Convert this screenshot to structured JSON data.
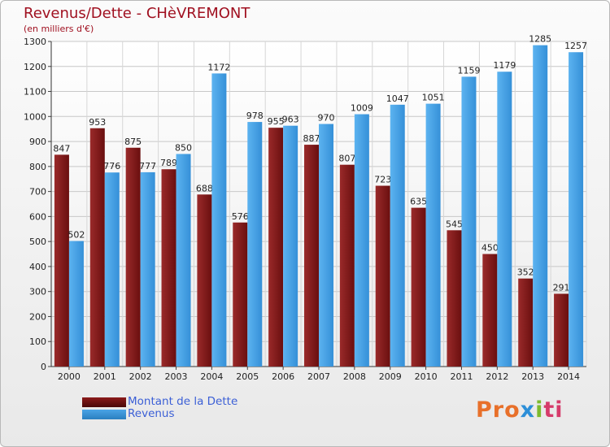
{
  "header": {
    "title": "Revenus/Dette - CHèVREMONT",
    "subtitle": "(en milliers d'€)"
  },
  "chart_data": {
    "type": "bar",
    "categories": [
      "2000",
      "2001",
      "2002",
      "2003",
      "2004",
      "2005",
      "2006",
      "2007",
      "2008",
      "2009",
      "2010",
      "2011",
      "2012",
      "2013",
      "2014"
    ],
    "series": [
      {
        "name": "Montant de la Dette",
        "color": "#8b1a1a",
        "values": [
          847,
          953,
          875,
          789,
          688,
          576,
          955,
          887,
          807,
          723,
          635,
          545,
          450,
          352,
          291
        ],
        "labels": [
          "847",
          "953",
          "875",
          "789",
          "688",
          "576",
          "955",
          "887",
          "807",
          "723",
          "635",
          "545",
          "450",
          "352",
          "291"
        ]
      },
      {
        "name": "Revenus",
        "color": "#4aa3e6",
        "values": [
          502,
          776,
          777,
          850,
          1172,
          978,
          963,
          970,
          1009,
          1047,
          1051,
          1159,
          1179,
          1285,
          1257
        ],
        "labels": [
          "502",
          "776",
          "777",
          "850",
          "1172",
          "978",
          "963",
          "970",
          "1009",
          "1047",
          "1051",
          "1159",
          "1179",
          "1285",
          "1257"
        ]
      }
    ],
    "ylim": [
      0,
      1300
    ],
    "yticks": [
      "0",
      "100",
      "200",
      "300",
      "400",
      "500",
      "600",
      "700",
      "800",
      "900",
      "1000",
      "1100",
      "1200",
      "1300"
    ],
    "grid": true,
    "legend_position": "bottom-left"
  },
  "legend": {
    "debt_label": "Montant de la Dette",
    "revenue_label": "Revenus",
    "debt_color": "#8b1a1a",
    "revenue_color": "#4aa3e6"
  },
  "logo": {
    "text": "Proxiti",
    "part1": "Pro",
    "part2": "x",
    "part3": "i",
    "part4": "ti"
  }
}
